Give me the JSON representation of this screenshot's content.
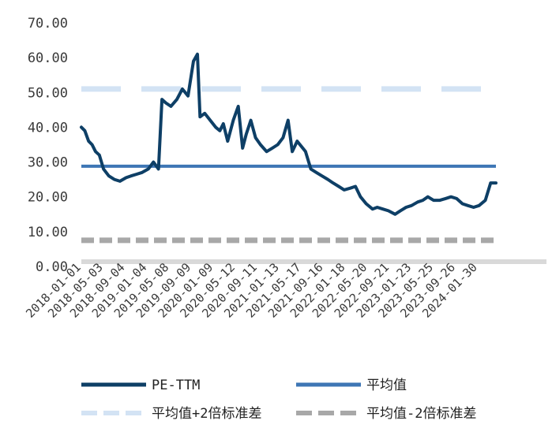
{
  "chart_data": {
    "type": "line",
    "title": "",
    "xlabel": "",
    "ylabel": "",
    "ylim": [
      0,
      70
    ],
    "y_ticks": [
      "0.00",
      "10.00",
      "20.00",
      "30.00",
      "40.00",
      "50.00",
      "60.00",
      "70.00"
    ],
    "x_ticks": [
      "2018-01-01",
      "2018-05-03",
      "2018-09-04",
      "2019-01-04",
      "2019-05-08",
      "2019-09-09",
      "2020-01-09",
      "2020-05-12",
      "2020-09-11",
      "2021-01-13",
      "2021-05-17",
      "2021-09-16",
      "2022-01-18",
      "2022-05-20",
      "2022-09-21",
      "2023-01-23",
      "2023-05-25",
      "2023-09-26",
      "2024-01-30"
    ],
    "grid": false,
    "legend_position": "bottom",
    "series": [
      {
        "name": "PE-TTM",
        "color": "#0e3f66",
        "style": "solid",
        "points": [
          [
            "2018-01-01",
            40
          ],
          [
            "2018-01-20",
            39
          ],
          [
            "2018-02-10",
            36
          ],
          [
            "2018-03-01",
            35
          ],
          [
            "2018-03-20",
            33
          ],
          [
            "2018-04-10",
            32
          ],
          [
            "2018-05-03",
            28
          ],
          [
            "2018-06-01",
            26
          ],
          [
            "2018-07-01",
            25
          ],
          [
            "2018-08-01",
            24.5
          ],
          [
            "2018-09-04",
            25.5
          ],
          [
            "2018-10-01",
            26
          ],
          [
            "2018-11-01",
            26.5
          ],
          [
            "2018-12-01",
            27
          ],
          [
            "2019-01-04",
            28
          ],
          [
            "2019-02-01",
            30
          ],
          [
            "2019-03-01",
            28
          ],
          [
            "2019-03-20",
            48
          ],
          [
            "2019-04-10",
            47
          ],
          [
            "2019-05-08",
            46
          ],
          [
            "2019-06-10",
            48
          ],
          [
            "2019-07-10",
            51
          ],
          [
            "2019-08-10",
            49
          ],
          [
            "2019-09-09",
            59
          ],
          [
            "2019-10-01",
            61
          ],
          [
            "2019-10-15",
            43
          ],
          [
            "2019-11-10",
            44
          ],
          [
            "2019-12-10",
            42
          ],
          [
            "2020-01-09",
            40
          ],
          [
            "2020-02-01",
            39
          ],
          [
            "2020-02-20",
            41
          ],
          [
            "2020-03-15",
            36
          ],
          [
            "2020-04-15",
            42
          ],
          [
            "2020-05-12",
            46
          ],
          [
            "2020-06-05",
            34
          ],
          [
            "2020-06-25",
            38
          ],
          [
            "2020-07-20",
            42
          ],
          [
            "2020-08-15",
            37
          ],
          [
            "2020-09-11",
            35
          ],
          [
            "2020-10-15",
            33
          ],
          [
            "2020-11-15",
            34
          ],
          [
            "2020-12-15",
            35
          ],
          [
            "2021-01-13",
            37
          ],
          [
            "2021-02-10",
            42
          ],
          [
            "2021-03-05",
            33
          ],
          [
            "2021-04-01",
            36
          ],
          [
            "2021-05-17",
            33
          ],
          [
            "2021-06-15",
            28
          ],
          [
            "2021-07-15",
            27
          ],
          [
            "2021-08-15",
            26
          ],
          [
            "2021-09-16",
            25
          ],
          [
            "2021-10-15",
            24
          ],
          [
            "2021-11-15",
            23
          ],
          [
            "2021-12-15",
            22
          ],
          [
            "2022-01-18",
            22.5
          ],
          [
            "2022-02-15",
            23
          ],
          [
            "2022-03-15",
            20
          ],
          [
            "2022-04-15",
            18
          ],
          [
            "2022-05-20",
            16.5
          ],
          [
            "2022-06-15",
            17
          ],
          [
            "2022-07-15",
            16.5
          ],
          [
            "2022-08-15",
            16
          ],
          [
            "2022-09-21",
            15
          ],
          [
            "2022-10-20",
            16
          ],
          [
            "2022-11-20",
            17
          ],
          [
            "2022-12-20",
            17.5
          ],
          [
            "2023-01-23",
            18.5
          ],
          [
            "2023-02-20",
            19
          ],
          [
            "2023-03-20",
            20
          ],
          [
            "2023-04-20",
            19
          ],
          [
            "2023-05-25",
            19
          ],
          [
            "2023-06-25",
            19.5
          ],
          [
            "2023-07-25",
            20
          ],
          [
            "2023-08-25",
            19.5
          ],
          [
            "2023-09-26",
            18
          ],
          [
            "2023-10-26",
            17.5
          ],
          [
            "2023-11-26",
            17
          ],
          [
            "2023-12-26",
            17.5
          ],
          [
            "2024-01-30",
            19
          ],
          [
            "2024-02-28",
            24
          ],
          [
            "2024-03-28",
            24
          ]
        ]
      },
      {
        "name": "平均值",
        "color": "#3e76b5",
        "style": "solid",
        "value": 28.8,
        "x_range": [
          "2018-01-01",
          "2024-03-28"
        ]
      },
      {
        "name": "平均值+2倍标准差",
        "color": "#d3e3f4",
        "style": "dashed",
        "value": 51,
        "x_range": [
          "2018-01-01",
          "2024-03-28"
        ]
      },
      {
        "name": "平均值-2倍标准差",
        "color": "#a8a8a8",
        "style": "dashed",
        "value": 7.5,
        "x_range": [
          "2018-01-01",
          "2024-03-28"
        ]
      }
    ]
  }
}
